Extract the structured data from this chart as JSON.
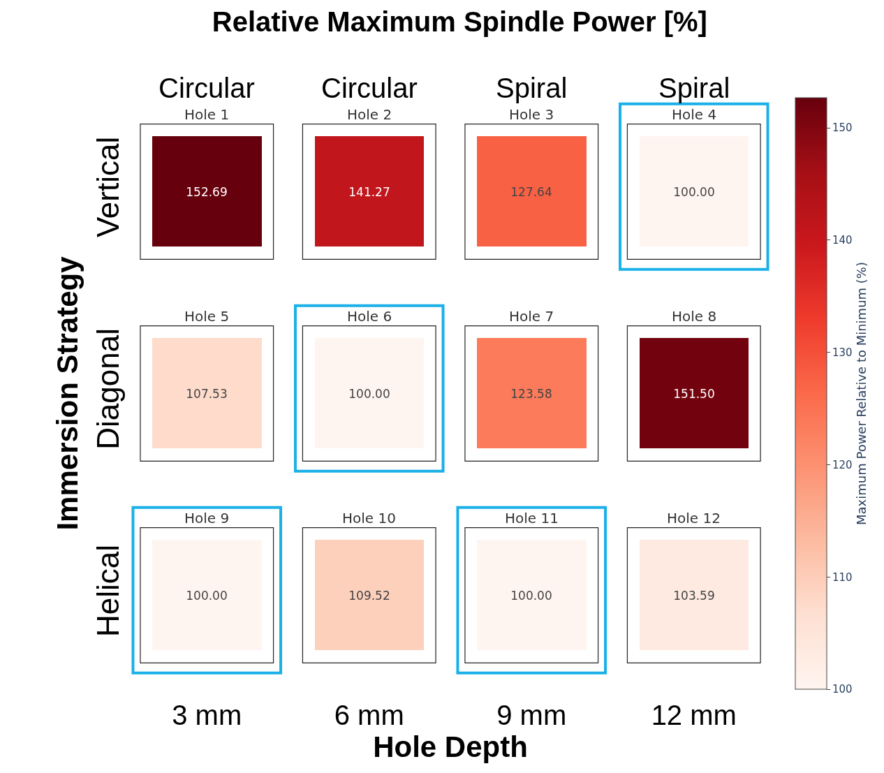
{
  "chart_data": {
    "type": "heatmap",
    "title": "Relative Maximum Spindle Power [%]",
    "xlabel": "Hole Depth",
    "ylabel": "Immersion Strategy",
    "clabel": "Maximum Power Relative to Minimum (%)",
    "categories": [
      "3 mm",
      "6 mm",
      "9 mm",
      "12 mm"
    ],
    "y_categories": [
      "Vertical",
      "Diagonal",
      "Helical"
    ],
    "cells": [
      [
        152.69,
        141.27,
        127.64,
        100.0
      ],
      [
        107.53,
        100.0,
        123.58,
        151.5
      ],
      [
        100.0,
        109.52,
        100.0,
        103.59
      ]
    ],
    "cell_labels": [
      [
        "152.69",
        "141.27",
        "127.64",
        "100.00"
      ],
      [
        "107.53",
        "100.00",
        "123.58",
        "151.50"
      ],
      [
        "100.00",
        "109.52",
        "100.00",
        "103.59"
      ]
    ],
    "clim": [
      100,
      152.69
    ],
    "cticks": [
      100,
      110,
      120,
      130,
      140,
      150
    ],
    "annotations": [
      "Circular",
      "Circular",
      "Spiral",
      "Spiral",
      "Hole 1",
      "Hole 2",
      "Hole 3",
      "Hole 4",
      "Hole 5",
      "Hole 6",
      "Hole 7",
      "Hole 8",
      "Hole 9",
      "Hole 10",
      "Hole 11",
      "Hole 12"
    ]
  }
}
